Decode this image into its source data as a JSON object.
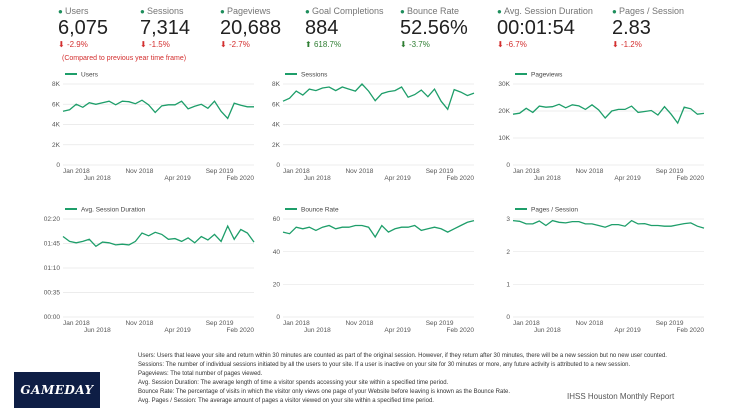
{
  "colors": {
    "line": "#1e9e6a",
    "grid": "#e6e6e6",
    "axis": "#555555",
    "negative": "#d32f2f",
    "positive": "#2e7d32",
    "logo_bg": "#0e1e45"
  },
  "kpis": [
    {
      "label": "Users",
      "value": "6,075",
      "change": "-2.9%",
      "direction": "down"
    },
    {
      "label": "Sessions",
      "value": "7,314",
      "change": "-1.5%",
      "direction": "down"
    },
    {
      "label": "Pageviews",
      "value": "20,688",
      "change": "-2.7%",
      "direction": "down"
    },
    {
      "label": "Goal Completions",
      "value": "884",
      "change": "618.7%",
      "direction": "up"
    },
    {
      "label": "Bounce Rate",
      "value": "52.56%",
      "change": "-3.7%",
      "direction": "down"
    },
    {
      "label": "Avg. Session Duration",
      "value": "00:01:54",
      "change": "-6.7%",
      "direction": "down"
    },
    {
      "label": "Pages / Session",
      "value": "2.83",
      "change": "-1.2%",
      "direction": "down"
    }
  ],
  "comparison_note": "(Compared to previous year time frame)",
  "chart_data": [
    {
      "type": "line",
      "series": [
        {
          "name": "Users",
          "values": [
            5300,
            5450,
            6000,
            5700,
            6150,
            6000,
            6150,
            6300,
            5950,
            6300,
            6250,
            6050,
            6400,
            5950,
            5200,
            5850,
            5950,
            5950,
            6300,
            5550,
            5800,
            6000,
            5600,
            6300,
            5300,
            4600,
            6100,
            5900,
            5750,
            5750
          ]
        }
      ],
      "y_ticks": [
        "0",
        "2K",
        "4K",
        "6K",
        "8K"
      ],
      "ylim": [
        0,
        8000
      ],
      "x_ticks": [
        "Jan 2018",
        "Jun 2018",
        "Nov 2018",
        "Apr 2019",
        "Sep 2019",
        "Feb 2020"
      ]
    },
    {
      "type": "line",
      "series": [
        {
          "name": "Sessions",
          "values": [
            6300,
            6600,
            7300,
            6900,
            7500,
            7350,
            7600,
            7700,
            7350,
            7700,
            7500,
            7300,
            8000,
            7300,
            6350,
            7050,
            7250,
            7350,
            7700,
            6700,
            6950,
            7400,
            6750,
            7500,
            6300,
            5500,
            7450,
            7200,
            6850,
            7100
          ]
        }
      ],
      "y_ticks": [
        "0",
        "2K",
        "4K",
        "6K",
        "8K"
      ],
      "ylim": [
        0,
        8000
      ],
      "x_ticks": [
        "Jan 2018",
        "Jun 2018",
        "Nov 2018",
        "Apr 2019",
        "Sep 2019",
        "Feb 2020"
      ]
    },
    {
      "type": "line",
      "series": [
        {
          "name": "Pageviews",
          "values": [
            18800,
            19200,
            21000,
            19500,
            21800,
            21400,
            21600,
            22500,
            21200,
            22300,
            21900,
            20600,
            22300,
            20400,
            17400,
            20000,
            20600,
            20600,
            21800,
            19500,
            19800,
            20200,
            18500,
            21600,
            18800,
            15500,
            21400,
            20800,
            18800,
            19100
          ]
        }
      ],
      "y_ticks": [
        "0",
        "10K",
        "20K",
        "30K"
      ],
      "ylim": [
        0,
        30000
      ],
      "x_ticks": [
        "Jan 2018",
        "Jun 2018",
        "Nov 2018",
        "Apr 2019",
        "Sep 2019",
        "Feb 2020"
      ]
    },
    {
      "type": "line",
      "series": [
        {
          "name": "Avg. Session Duration",
          "values": [
            115,
            108,
            106,
            108,
            111,
            101,
            107,
            106,
            103,
            104,
            103,
            108,
            120,
            116,
            121,
            118,
            111,
            112,
            108,
            113,
            106,
            115,
            110,
            118,
            108,
            130,
            111,
            125,
            120,
            107
          ]
        }
      ],
      "y_ticks": [
        "00:00",
        "00:35",
        "01:10",
        "01:45",
        "02:20"
      ],
      "ylim": [
        0,
        140
      ],
      "x_ticks": [
        "Jan 2018",
        "Jun 2018",
        "Nov 2018",
        "Apr 2019",
        "Sep 2019",
        "Feb 2020"
      ]
    },
    {
      "type": "line",
      "series": [
        {
          "name": "Bounce Rate",
          "values": [
            52,
            51,
            55,
            54,
            55,
            53,
            55,
            56,
            54,
            55,
            55,
            56,
            56,
            55,
            49,
            56,
            52,
            54,
            55,
            55,
            56,
            53,
            54,
            55,
            54,
            52,
            54,
            56,
            58,
            59
          ]
        }
      ],
      "y_ticks": [
        "0",
        "20",
        "40",
        "60"
      ],
      "ylim": [
        0,
        60
      ],
      "x_ticks": [
        "Jan 2018",
        "Jun 2018",
        "Nov 2018",
        "Apr 2019",
        "Sep 2019",
        "Feb 2020"
      ]
    },
    {
      "type": "line",
      "series": [
        {
          "name": "Pages / Session",
          "values": [
            2.95,
            2.93,
            2.85,
            2.85,
            2.94,
            2.8,
            2.95,
            2.9,
            2.88,
            2.92,
            2.92,
            2.85,
            2.85,
            2.8,
            2.75,
            2.83,
            2.83,
            2.78,
            2.95,
            2.85,
            2.86,
            2.8,
            2.8,
            2.78,
            2.78,
            2.82,
            2.86,
            2.88,
            2.78,
            2.72
          ]
        }
      ],
      "y_ticks": [
        "0",
        "1",
        "2",
        "3"
      ],
      "ylim": [
        0,
        3
      ],
      "x_ticks": [
        "Jan 2018",
        "Jun 2018",
        "Nov 2018",
        "Apr 2019",
        "Sep 2019",
        "Feb 2020"
      ]
    }
  ],
  "footnotes": [
    "Users: Users that leave your site and return within 30 minutes are counted as part of the original session. However, if they return after 30 minutes, there will be a new session but no new user counted.",
    "Sessions: The number of individual sessions initiated by all the users to your site. If a user is inactive on your site for 30 minutes or more, any future activity is attributed to a new session.",
    "Pageviews: The total number of pages viewed.",
    "Avg. Session Duration: The average length of time a visitor spends accessing your site within a specified time period.",
    "Bounce Rate: The percentage of visits in which the visitor only views one page of your Website before leaving is known as the Bounce Rate.",
    "Avg. Pages / Session: The average amount of pages a visitor viewed on your site within a specified time period."
  ],
  "logo_text": "GAMEDAY",
  "report_title": "IHSS Houston Monthly Report"
}
